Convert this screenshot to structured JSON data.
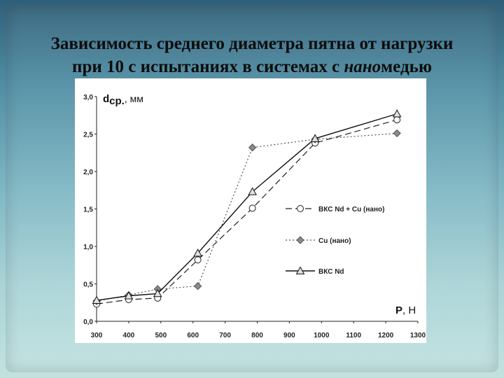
{
  "slide": {
    "title_line1": "Зависимость среднего диаметра пятна от нагрузки",
    "title_line2_a": "при 10 с испытаниях в системах с ",
    "title_line2_italic": "нано",
    "title_line2_b": "медью"
  },
  "chart_data": {
    "type": "line",
    "ylabel_main": "d",
    "ylabel_sub": "ср.",
    "ylabel_unit": ", мм",
    "xlabel_main": "P",
    "xlabel_unit": ", Н",
    "xlim": [
      300,
      1300
    ],
    "ylim": [
      0,
      3.0
    ],
    "x_ticks": [
      300,
      400,
      500,
      600,
      700,
      800,
      900,
      1000,
      1100,
      1200,
      1300
    ],
    "y_ticks": [
      0,
      0.5,
      1.0,
      1.5,
      2.0,
      2.5,
      3.0
    ],
    "y_tick_labels": [
      "0,0",
      "0,5",
      "1,0",
      "1,5",
      "2,0",
      "2,5",
      "3,0"
    ],
    "grid": false,
    "legend_position": "right-middle",
    "series": [
      {
        "name": "ВКС Nd + Cu (нано)",
        "marker": "circle",
        "line": "dashed",
        "color": "#222222",
        "fill": "#ffffff",
        "points": [
          [
            300,
            0.23
          ],
          [
            400,
            0.29
          ],
          [
            490,
            0.31
          ],
          [
            615,
            0.82
          ],
          [
            785,
            1.51
          ],
          [
            980,
            2.38
          ],
          [
            1235,
            2.69
          ]
        ]
      },
      {
        "name": "Cu (нано)",
        "marker": "diamond",
        "line": "dotted",
        "color": "#555555",
        "fill": "#8a8a8a",
        "points": [
          [
            300,
            0.27
          ],
          [
            400,
            0.35
          ],
          [
            490,
            0.43
          ],
          [
            615,
            0.47
          ],
          [
            785,
            2.32
          ],
          [
            980,
            2.43
          ],
          [
            1235,
            2.51
          ]
        ]
      },
      {
        "name": "ВКС Nd",
        "marker": "triangle",
        "line": "solid",
        "color": "#111111",
        "fill": "#e0e0e0",
        "points": [
          [
            300,
            0.28
          ],
          [
            400,
            0.34
          ],
          [
            490,
            0.37
          ],
          [
            615,
            0.91
          ],
          [
            785,
            1.73
          ],
          [
            980,
            2.44
          ],
          [
            1235,
            2.77
          ]
        ]
      }
    ]
  }
}
